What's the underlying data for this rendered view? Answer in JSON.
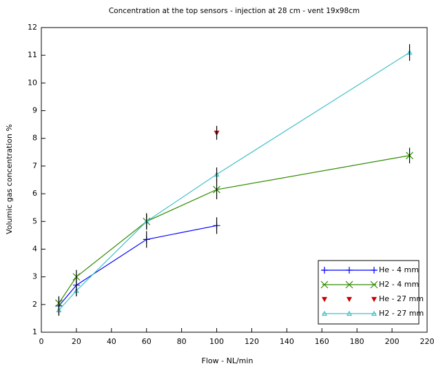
{
  "chart_data": {
    "type": "line",
    "title": "Concentration at the top sensors - injection at 28 cm - vent 19x98cm",
    "x_label": "Flow - NL/min",
    "y_label": "Volumic gas concentration %",
    "xlim": [
      0,
      220
    ],
    "xticks": [
      0,
      20,
      40,
      60,
      80,
      100,
      120,
      140,
      160,
      180,
      200,
      220
    ],
    "ylim": [
      1,
      12
    ],
    "yticks": [
      1,
      2,
      3,
      4,
      5,
      6,
      7,
      8,
      9,
      10,
      11,
      12
    ],
    "legend": "lower right",
    "series": [
      {
        "name": "He - 4 mm",
        "color": "#0000ff",
        "marker": "plus",
        "line": true,
        "x": [
          10,
          20,
          60,
          100
        ],
        "values": [
          1.95,
          2.7,
          4.35,
          4.85
        ],
        "errors": [
          0.35,
          0.4,
          0.3,
          0.3
        ]
      },
      {
        "name": "H2 - 4 mm",
        "color": "#2e8b00",
        "marker": "cross",
        "line": true,
        "x": [
          10,
          20,
          60,
          100,
          210
        ],
        "values": [
          2.05,
          3.0,
          5.0,
          6.15,
          7.38
        ],
        "errors": [
          0.2,
          0.25,
          0.3,
          0.35,
          0.28
        ]
      },
      {
        "name": "He - 27 mm",
        "color": "#cc0000",
        "marker": "triangle-down",
        "line": false,
        "x": [
          100
        ],
        "values": [
          8.2
        ],
        "errors": [
          0.25
        ]
      },
      {
        "name": "H2 - 27 mm",
        "color": "#40c0c8",
        "marker": "triangle-up",
        "line": true,
        "x": [
          10,
          20,
          60,
          100,
          210
        ],
        "values": [
          1.8,
          2.5,
          5.0,
          6.7,
          11.1
        ],
        "errors": [
          0.2,
          0.2,
          0.25,
          0.25,
          0.3
        ]
      }
    ]
  }
}
